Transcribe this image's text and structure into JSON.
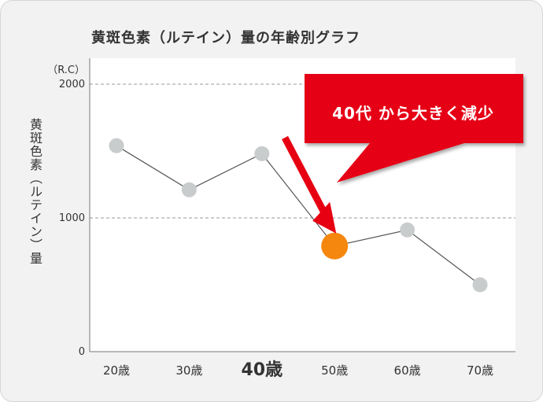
{
  "chart_data": {
    "type": "line",
    "title": "黄斑色素（ルテイン）量の年齢別グラフ",
    "ylabel": "黄斑色素（ルテイン）量",
    "yunit": "（R.C）",
    "xlabel": "",
    "categories": [
      "20歳",
      "30歳",
      "40歳",
      "50歳",
      "60歳",
      "70歳"
    ],
    "values": [
      1540,
      1210,
      1480,
      790,
      910,
      500
    ],
    "highlight_category": "40歳",
    "highlight_point": "50歳",
    "yticks": [
      0,
      1000,
      2000
    ],
    "ylim": [
      0,
      2000
    ],
    "grid": "dashed horizontal at 1000 and 2000",
    "annotation": "40代 から大きく減少",
    "colors": {
      "line": "#555555",
      "point": "#c8cccc",
      "highlight_point": "#f5870f",
      "callout": "#e60012",
      "arrow": "#e60012"
    }
  }
}
